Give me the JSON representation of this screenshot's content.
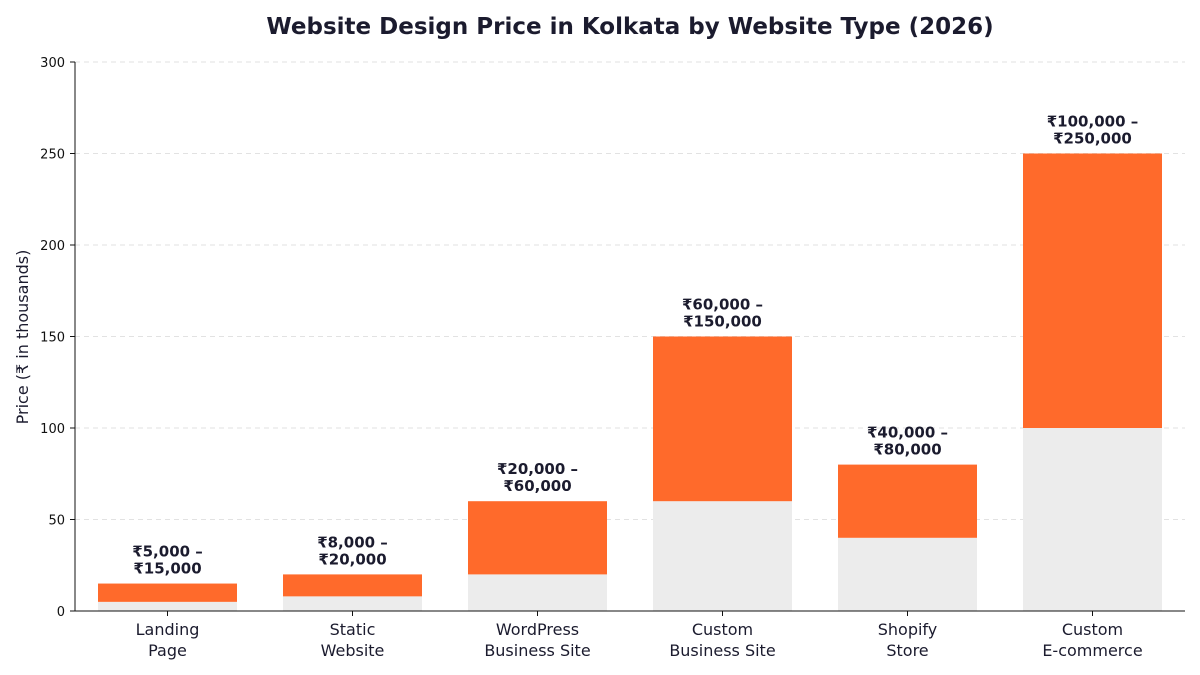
{
  "chart_data": {
    "type": "bar",
    "stacked": true,
    "title": "Website Design Price in Kolkata by Website Type (2026)",
    "xlabel": "",
    "ylabel": "Price (₹ in thousands)",
    "ylim": [
      0,
      300
    ],
    "yticks": [
      0,
      50,
      100,
      150,
      200,
      250,
      300
    ],
    "grid": true,
    "categories": [
      [
        "Landing",
        "Page"
      ],
      [
        "Static",
        "Website"
      ],
      [
        "WordPress",
        "Business Site"
      ],
      [
        "Custom",
        "Business Site"
      ],
      [
        "Shopify",
        "Store"
      ],
      [
        "Custom",
        "E-commerce"
      ]
    ],
    "series": [
      {
        "values": [
          5,
          8,
          20,
          60,
          40,
          100
        ],
        "color": "#ececec"
      },
      {
        "values": [
          10,
          12,
          40,
          90,
          40,
          150
        ],
        "color": "#ff6a2b"
      }
    ],
    "range_min": [
      5,
      8,
      20,
      60,
      40,
      100
    ],
    "range_max": [
      15,
      20,
      60,
      150,
      80,
      250
    ],
    "data_labels": [
      [
        "₹5,000 –",
        "₹15,000"
      ],
      [
        "₹8,000 –",
        "₹20,000"
      ],
      [
        "₹20,000 –",
        "₹60,000"
      ],
      [
        "₹60,000 –",
        "₹150,000"
      ],
      [
        "₹40,000 –",
        "₹80,000"
      ],
      [
        "₹100,000 –",
        "₹250,000"
      ]
    ]
  }
}
